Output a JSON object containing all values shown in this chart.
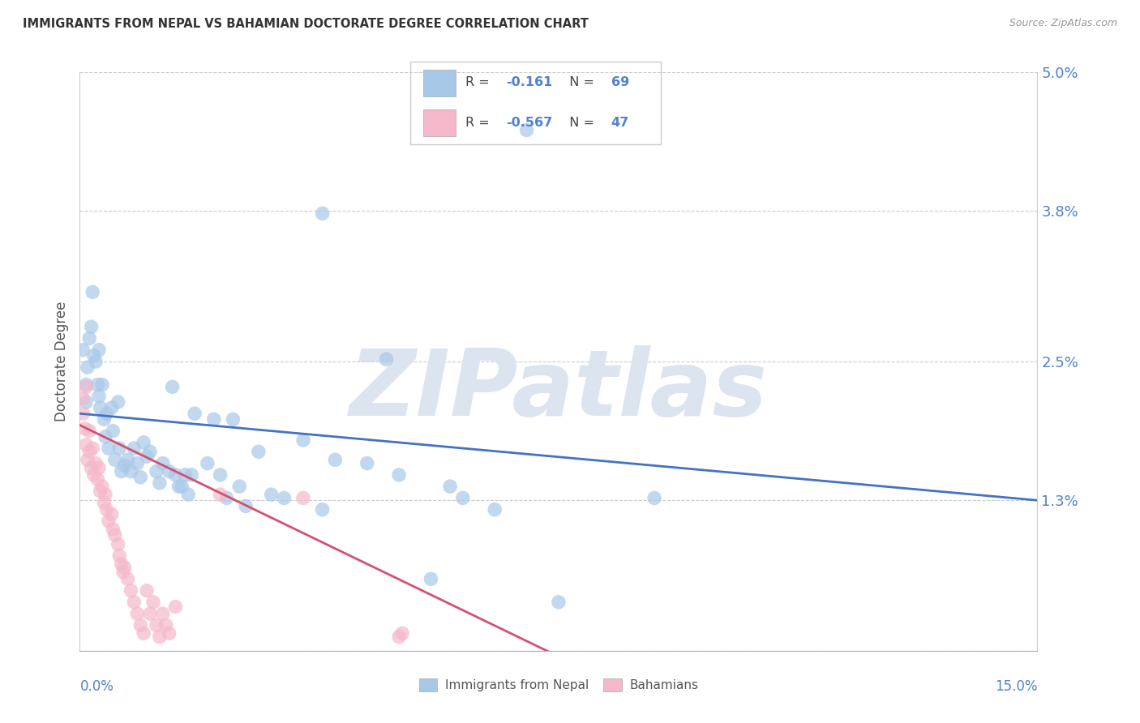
{
  "title": "IMMIGRANTS FROM NEPAL VS BAHAMIAN DOCTORATE DEGREE CORRELATION CHART",
  "source": "Source: ZipAtlas.com",
  "ylabel": "Doctorate Degree",
  "legend_label1": "Immigrants from Nepal",
  "legend_label2": "Bahamians",
  "r1": -0.161,
  "n1": 69,
  "r2": -0.567,
  "n2": 47,
  "yticks": [
    0.0,
    1.3,
    2.5,
    3.8,
    5.0
  ],
  "xlim": [
    0.0,
    15.0
  ],
  "ylim": [
    0.0,
    5.0
  ],
  "color_blue": "#a8c8e8",
  "color_pink": "#f5b8cb",
  "line_color_blue": "#4472c4",
  "line_color_pink": "#d45070",
  "tick_color": "#5080d0",
  "watermark": "ZIPatlas",
  "watermark_color": "#dce4f0",
  "blue_line_x": [
    0.0,
    15.0
  ],
  "blue_line_y": [
    2.05,
    1.3
  ],
  "pink_line_x": [
    0.0,
    7.5
  ],
  "pink_line_y": [
    1.95,
    -0.05
  ],
  "blue_points": [
    [
      0.05,
      2.6
    ],
    [
      0.1,
      2.3
    ],
    [
      0.1,
      2.15
    ],
    [
      0.12,
      2.45
    ],
    [
      0.15,
      2.7
    ],
    [
      0.18,
      2.8
    ],
    [
      0.2,
      3.1
    ],
    [
      0.22,
      2.55
    ],
    [
      0.25,
      2.5
    ],
    [
      0.28,
      2.3
    ],
    [
      0.3,
      2.6
    ],
    [
      0.3,
      2.2
    ],
    [
      0.32,
      2.1
    ],
    [
      0.35,
      2.3
    ],
    [
      0.38,
      2.0
    ],
    [
      0.4,
      1.85
    ],
    [
      0.42,
      2.05
    ],
    [
      0.45,
      1.75
    ],
    [
      0.5,
      2.1
    ],
    [
      0.52,
      1.9
    ],
    [
      0.55,
      1.65
    ],
    [
      0.6,
      2.15
    ],
    [
      0.62,
      1.75
    ],
    [
      0.65,
      1.55
    ],
    [
      0.7,
      1.6
    ],
    [
      0.75,
      1.65
    ],
    [
      0.8,
      1.55
    ],
    [
      0.85,
      1.75
    ],
    [
      0.9,
      1.62
    ],
    [
      0.95,
      1.5
    ],
    [
      1.0,
      1.8
    ],
    [
      1.05,
      1.68
    ],
    [
      1.1,
      1.72
    ],
    [
      1.2,
      1.55
    ],
    [
      1.25,
      1.45
    ],
    [
      1.3,
      1.62
    ],
    [
      1.4,
      1.55
    ],
    [
      1.45,
      2.28
    ],
    [
      1.5,
      1.52
    ],
    [
      1.55,
      1.42
    ],
    [
      1.6,
      1.42
    ],
    [
      1.65,
      1.52
    ],
    [
      1.7,
      1.35
    ],
    [
      1.75,
      1.52
    ],
    [
      1.8,
      2.05
    ],
    [
      2.0,
      1.62
    ],
    [
      2.1,
      2.0
    ],
    [
      2.2,
      1.52
    ],
    [
      2.3,
      1.32
    ],
    [
      2.4,
      2.0
    ],
    [
      2.5,
      1.42
    ],
    [
      2.6,
      1.25
    ],
    [
      2.8,
      1.72
    ],
    [
      3.0,
      1.35
    ],
    [
      3.2,
      1.32
    ],
    [
      3.5,
      1.82
    ],
    [
      3.8,
      1.22
    ],
    [
      4.0,
      1.65
    ],
    [
      3.8,
      3.78
    ],
    [
      4.8,
      2.52
    ],
    [
      7.0,
      4.5
    ],
    [
      4.5,
      1.62
    ],
    [
      5.0,
      1.52
    ],
    [
      5.5,
      0.62
    ],
    [
      5.8,
      1.42
    ],
    [
      6.0,
      1.32
    ],
    [
      6.5,
      1.22
    ],
    [
      7.5,
      0.42
    ],
    [
      9.0,
      1.32
    ]
  ],
  "pink_points": [
    [
      0.05,
      2.18
    ],
    [
      0.05,
      2.05
    ],
    [
      0.08,
      1.92
    ],
    [
      0.1,
      2.28
    ],
    [
      0.1,
      1.78
    ],
    [
      0.12,
      1.65
    ],
    [
      0.15,
      1.9
    ],
    [
      0.15,
      1.72
    ],
    [
      0.18,
      1.58
    ],
    [
      0.2,
      1.75
    ],
    [
      0.22,
      1.52
    ],
    [
      0.25,
      1.62
    ],
    [
      0.28,
      1.48
    ],
    [
      0.3,
      1.58
    ],
    [
      0.32,
      1.38
    ],
    [
      0.35,
      1.42
    ],
    [
      0.38,
      1.28
    ],
    [
      0.4,
      1.35
    ],
    [
      0.42,
      1.22
    ],
    [
      0.45,
      1.12
    ],
    [
      0.5,
      1.18
    ],
    [
      0.52,
      1.05
    ],
    [
      0.55,
      1.0
    ],
    [
      0.6,
      0.92
    ],
    [
      0.62,
      0.82
    ],
    [
      0.65,
      0.75
    ],
    [
      0.68,
      0.68
    ],
    [
      0.7,
      0.72
    ],
    [
      0.75,
      0.62
    ],
    [
      0.8,
      0.52
    ],
    [
      0.85,
      0.42
    ],
    [
      0.9,
      0.32
    ],
    [
      0.95,
      0.22
    ],
    [
      1.0,
      0.15
    ],
    [
      1.05,
      0.52
    ],
    [
      1.1,
      0.32
    ],
    [
      1.15,
      0.42
    ],
    [
      1.2,
      0.22
    ],
    [
      1.25,
      0.12
    ],
    [
      1.3,
      0.32
    ],
    [
      1.35,
      0.22
    ],
    [
      1.4,
      0.15
    ],
    [
      1.5,
      0.38
    ],
    [
      2.2,
      1.35
    ],
    [
      3.5,
      1.32
    ],
    [
      5.0,
      0.12
    ],
    [
      5.05,
      0.15
    ]
  ]
}
